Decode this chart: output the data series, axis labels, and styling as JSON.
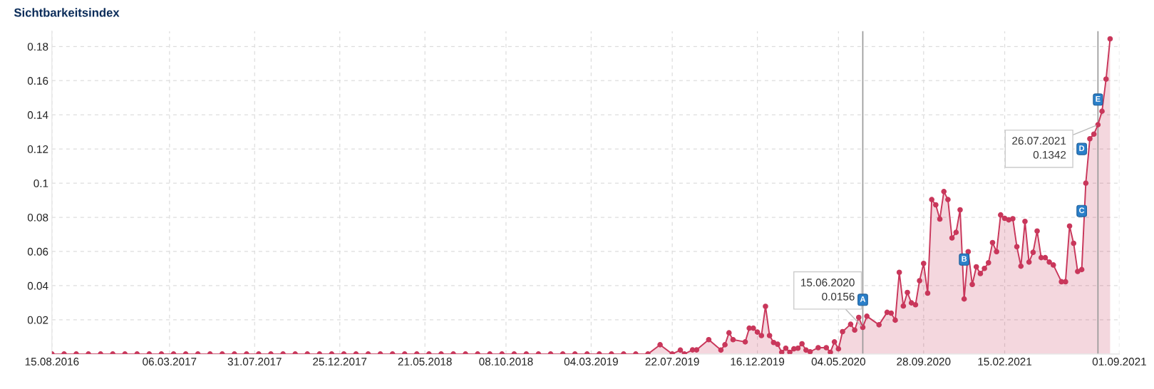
{
  "chart_data": {
    "type": "area",
    "title": "Sichtbarkeitsindex",
    "marker": "circle",
    "line_style": "solid",
    "grid": true,
    "x": [
      "2016-08-15",
      "2016-09-05",
      "2016-09-26",
      "2016-10-17",
      "2016-11-07",
      "2016-11-28",
      "2016-12-19",
      "2017-01-09",
      "2017-01-30",
      "2017-02-20",
      "2017-03-13",
      "2017-04-03",
      "2017-04-24",
      "2017-05-15",
      "2017-06-05",
      "2017-06-26",
      "2017-07-17",
      "2017-08-07",
      "2017-08-28",
      "2017-09-18",
      "2017-10-09",
      "2017-10-30",
      "2017-11-20",
      "2017-12-11",
      "2018-01-01",
      "2018-01-22",
      "2018-02-12",
      "2018-03-05",
      "2018-03-26",
      "2018-04-16",
      "2018-05-07",
      "2018-05-28",
      "2018-06-18",
      "2018-07-09",
      "2018-07-30",
      "2018-08-20",
      "2018-09-10",
      "2018-10-01",
      "2018-10-22",
      "2018-11-12",
      "2018-12-03",
      "2018-12-24",
      "2019-01-14",
      "2019-02-04",
      "2019-02-25",
      "2019-03-18",
      "2019-04-08",
      "2019-04-29",
      "2019-05-20",
      "2019-06-10",
      "2019-07-01",
      "2019-07-22",
      "2019-08-05",
      "2019-08-12",
      "2019-08-26",
      "2019-09-02",
      "2019-09-23",
      "2019-10-14",
      "2019-10-21",
      "2019-10-28",
      "2019-11-04",
      "2019-11-25",
      "2019-12-02",
      "2019-12-09",
      "2019-12-16",
      "2019-12-23",
      "2019-12-30",
      "2020-01-06",
      "2020-01-13",
      "2020-01-20",
      "2020-01-27",
      "2020-02-03",
      "2020-02-10",
      "2020-02-17",
      "2020-02-24",
      "2020-03-02",
      "2020-03-09",
      "2020-03-16",
      "2020-03-30",
      "2020-04-13",
      "2020-04-20",
      "2020-04-27",
      "2020-05-04",
      "2020-05-11",
      "2020-05-25",
      "2020-06-01",
      "2020-06-08",
      "2020-06-15",
      "2020-06-22",
      "2020-07-13",
      "2020-07-27",
      "2020-08-03",
      "2020-08-10",
      "2020-08-17",
      "2020-08-24",
      "2020-08-31",
      "2020-09-07",
      "2020-09-14",
      "2020-09-21",
      "2020-09-28",
      "2020-10-05",
      "2020-10-12",
      "2020-10-19",
      "2020-10-26",
      "2020-11-02",
      "2020-11-09",
      "2020-11-16",
      "2020-11-23",
      "2020-11-30",
      "2020-12-07",
      "2020-12-14",
      "2020-12-21",
      "2020-12-28",
      "2021-01-04",
      "2021-01-11",
      "2021-01-18",
      "2021-01-25",
      "2021-02-01",
      "2021-02-08",
      "2021-02-15",
      "2021-02-22",
      "2021-03-01",
      "2021-03-08",
      "2021-03-15",
      "2021-03-22",
      "2021-03-29",
      "2021-04-05",
      "2021-04-12",
      "2021-04-19",
      "2021-04-26",
      "2021-05-03",
      "2021-05-10",
      "2021-05-24",
      "2021-05-31",
      "2021-06-07",
      "2021-06-14",
      "2021-06-21",
      "2021-06-28",
      "2021-07-05",
      "2021-07-12",
      "2021-07-19",
      "2021-07-26",
      "2021-08-02",
      "2021-08-09",
      "2021-08-16"
    ],
    "series": [
      {
        "color": "#c9375b",
        "values": [
          0,
          0,
          0,
          0,
          0,
          0,
          0,
          0,
          0,
          0,
          0,
          0,
          0,
          0,
          0,
          0,
          0,
          0,
          0,
          0,
          0,
          0,
          0,
          0,
          0,
          0,
          0,
          0,
          0,
          0,
          0,
          0,
          0,
          0,
          0,
          0,
          0,
          0,
          0,
          0,
          0,
          0,
          0,
          0,
          0,
          0,
          0,
          0,
          0,
          0,
          0.0054,
          0,
          0.0023,
          0,
          0.0024,
          0.0024,
          0.0084,
          0.0023,
          0.0054,
          0.0124,
          0.0084,
          0.0071,
          0.0151,
          0.0151,
          0.0128,
          0.0108,
          0.0279,
          0.0108,
          0.0067,
          0.0057,
          0.001,
          0.0034,
          0.001,
          0.003,
          0.0034,
          0.006,
          0.0023,
          0.0013,
          0.0037,
          0.0037,
          0.001,
          0.0071,
          0.003,
          0.0131,
          0.0174,
          0.014,
          0.0214,
          0.0156,
          0.0221,
          0.0171,
          0.0244,
          0.0239,
          0.0198,
          0.0478,
          0.0281,
          0.036,
          0.0299,
          0.0288,
          0.0429,
          0.053,
          0.0356,
          0.0904,
          0.0873,
          0.079,
          0.0951,
          0.0904,
          0.0679,
          0.0712,
          0.0844,
          0.0322,
          0.0599,
          0.0407,
          0.051,
          0.0471,
          0.0501,
          0.0534,
          0.0652,
          0.0599,
          0.0814,
          0.0794,
          0.0785,
          0.0792,
          0.0628,
          0.0514,
          0.0776,
          0.0538,
          0.0595,
          0.072,
          0.0564,
          0.0564,
          0.0538,
          0.0521,
          0.0423,
          0.0423,
          0.0749,
          0.0648,
          0.0483,
          0.0494,
          0.1,
          0.126,
          0.1287,
          0.1342,
          0.1421,
          0.1609,
          0.1845
        ]
      }
    ],
    "xlim": [
      "2016-08-15",
      "2021-09-01"
    ],
    "xticks": [
      {
        "value": "2016-08-15",
        "label": "15.08.2016"
      },
      {
        "value": "2017-03-06",
        "label": "06.03.2017"
      },
      {
        "value": "2017-07-31",
        "label": "31.07.2017"
      },
      {
        "value": "2017-12-25",
        "label": "25.12.2017"
      },
      {
        "value": "2018-05-21",
        "label": "21.05.2018"
      },
      {
        "value": "2018-10-08",
        "label": "08.10.2018"
      },
      {
        "value": "2019-03-04",
        "label": "04.03.2019"
      },
      {
        "value": "2019-07-22",
        "label": "22.07.2019"
      },
      {
        "value": "2019-12-16",
        "label": "16.12.2019"
      },
      {
        "value": "2020-05-04",
        "label": "04.05.2020"
      },
      {
        "value": "2020-09-28",
        "label": "28.09.2020"
      },
      {
        "value": "2021-02-15",
        "label": "15.02.2021"
      },
      {
        "value": "2021-09-01",
        "label": "01.09.2021"
      }
    ],
    "ylim": [
      0,
      0.189
    ],
    "yticks": [
      0.02,
      0.04,
      0.06,
      0.08,
      {
        "value": 0.1,
        "label": "0.1"
      },
      0.12,
      0.14,
      0.16,
      0.18
    ],
    "ref_lines": [
      {
        "axis": "x",
        "value": "2020-06-15",
        "color": "#999999"
      },
      {
        "axis": "x",
        "value": "2021-07-26",
        "color": "#999999"
      }
    ],
    "annotations": [
      {
        "text": "15.06.2020\n0.0156",
        "x": "2020-06-15",
        "y": 0.0156
      },
      {
        "text": "26.07.2021\n0.1342",
        "x": "2021-07-26",
        "y": 0.1342
      },
      {
        "text": "A",
        "x": "2020-06-15",
        "y": 0.0317
      },
      {
        "text": "B",
        "x": "2020-12-07",
        "y": 0.0553
      },
      {
        "text": "C",
        "x": "2021-06-28",
        "y": 0.0837
      },
      {
        "text": "D",
        "x": "2021-06-28",
        "y": 0.12
      },
      {
        "text": "E",
        "x": "2021-07-26",
        "y": 0.1489
      }
    ]
  }
}
